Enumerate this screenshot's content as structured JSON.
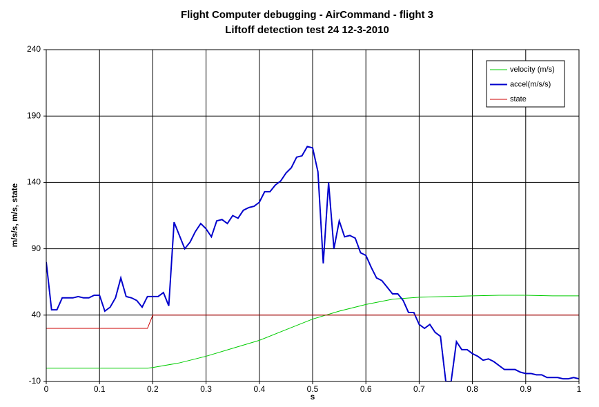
{
  "chart_data": {
    "type": "line",
    "title": "Flight Computer debugging - AirCommand - flight 3",
    "subtitle": "Liftoff detection test 24 12-3-2010",
    "xlabel": "s",
    "ylabel": "m/s/s, m/s, state",
    "xlim": [
      0,
      1
    ],
    "xticks": [
      0,
      0.1,
      0.2,
      0.3,
      0.4,
      0.5,
      0.6,
      0.7,
      0.8,
      0.9,
      1
    ],
    "ylim": [
      -10,
      240
    ],
    "yticks": [
      -10,
      40,
      90,
      140,
      190,
      240
    ],
    "grid": true,
    "legend": "top-right",
    "series": [
      {
        "name": "velocity (m/s)",
        "color": "#00cc00",
        "x": [
          0,
          0.05,
          0.1,
          0.15,
          0.19,
          0.2,
          0.25,
          0.3,
          0.35,
          0.4,
          0.45,
          0.5,
          0.55,
          0.6,
          0.65,
          0.7,
          0.75,
          0.8,
          0.85,
          0.9,
          0.95,
          1
        ],
        "values": [
          0,
          0,
          0,
          0,
          0,
          0.5,
          4,
          9,
          15,
          21,
          29,
          37,
          43,
          48,
          52,
          53.5,
          54,
          54.5,
          55,
          55,
          54.5,
          54.5
        ]
      },
      {
        "name": "accel(m/s/s)",
        "color": "#0000cc",
        "x": [
          0,
          0.01,
          0.02,
          0.03,
          0.04,
          0.05,
          0.06,
          0.07,
          0.08,
          0.09,
          0.1,
          0.11,
          0.12,
          0.13,
          0.14,
          0.15,
          0.16,
          0.17,
          0.18,
          0.19,
          0.2,
          0.21,
          0.22,
          0.23,
          0.24,
          0.25,
          0.26,
          0.27,
          0.28,
          0.29,
          0.3,
          0.31,
          0.32,
          0.33,
          0.34,
          0.35,
          0.36,
          0.37,
          0.38,
          0.39,
          0.4,
          0.41,
          0.42,
          0.43,
          0.44,
          0.45,
          0.46,
          0.47,
          0.48,
          0.49,
          0.5,
          0.51,
          0.52,
          0.53,
          0.54,
          0.55,
          0.56,
          0.57,
          0.58,
          0.59,
          0.6,
          0.61,
          0.62,
          0.63,
          0.64,
          0.65,
          0.66,
          0.67,
          0.68,
          0.69,
          0.7,
          0.71,
          0.72,
          0.73,
          0.74,
          0.75,
          0.76,
          0.77,
          0.78,
          0.79,
          0.8,
          0.81,
          0.82,
          0.83,
          0.84,
          0.85,
          0.86,
          0.87,
          0.88,
          0.89,
          0.9,
          0.91,
          0.92,
          0.93,
          0.94,
          0.95,
          0.96,
          0.97,
          0.98,
          0.99,
          1
        ],
        "values": [
          80,
          44,
          44,
          53,
          53,
          53,
          54,
          53,
          53,
          55,
          55,
          43,
          46,
          53,
          68,
          54,
          53,
          51,
          46,
          54,
          54,
          54,
          57,
          47,
          110,
          100,
          90,
          95,
          103,
          109,
          105,
          99,
          111,
          112,
          109,
          115,
          113,
          119,
          121,
          122,
          125,
          133,
          133,
          138,
          141,
          147,
          151,
          159,
          160,
          167,
          166,
          148,
          79,
          140,
          90,
          111,
          99,
          100,
          98,
          87,
          85,
          76,
          68,
          66,
          61,
          56,
          56,
          51,
          42,
          42,
          33,
          30,
          33,
          27,
          24,
          -10,
          -10,
          20,
          14,
          14,
          11,
          9,
          6,
          7,
          5,
          2,
          -1,
          -1,
          -1,
          -3,
          -4,
          -4,
          -5,
          -5,
          -7,
          -7,
          -7,
          -8,
          -8,
          -7,
          -8
        ]
      },
      {
        "name": "state",
        "color": "#cc0000",
        "x": [
          0,
          0.19,
          0.2,
          1
        ],
        "values": [
          30,
          30,
          40,
          40
        ]
      }
    ]
  }
}
